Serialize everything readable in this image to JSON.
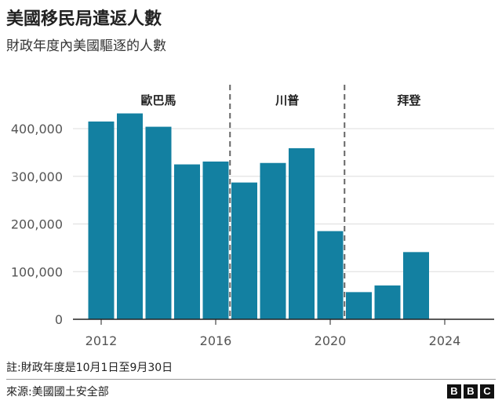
{
  "title": "美國移民局遣返人數",
  "subtitle": "財政年度內美國驅逐的人數",
  "note": "註:財政年度是10月1日至9月30日",
  "source": "來源:美國國土安全部",
  "logo": "BBC",
  "chart_data": {
    "type": "bar",
    "x": [
      2012,
      2013,
      2014,
      2015,
      2016,
      2017,
      2018,
      2019,
      2020,
      2021,
      2022,
      2023
    ],
    "values": [
      415000,
      432000,
      404000,
      325000,
      331000,
      287000,
      328000,
      359000,
      185000,
      57000,
      71000,
      141000
    ],
    "xlim": [
      2011.5,
      2025
    ],
    "ylim": [
      0,
      400000
    ],
    "xticks": [
      "2012",
      "2016",
      "2020",
      "2024"
    ],
    "xtick_values": [
      2012,
      2016,
      2020,
      2024
    ],
    "yticks": [
      "0",
      "100,000",
      "200,000",
      "300,000",
      "400,000"
    ],
    "ytick_values": [
      0,
      100000,
      200000,
      300000,
      400000
    ],
    "grid": true,
    "bar_color": "#1380A1",
    "periods": [
      {
        "label": "歐巴馬",
        "from": 2011.5,
        "to": 2016.5
      },
      {
        "label": "川普",
        "from": 2016.5,
        "to": 2020.5
      },
      {
        "label": "拜登",
        "from": 2020.5,
        "to": 2025
      }
    ]
  }
}
